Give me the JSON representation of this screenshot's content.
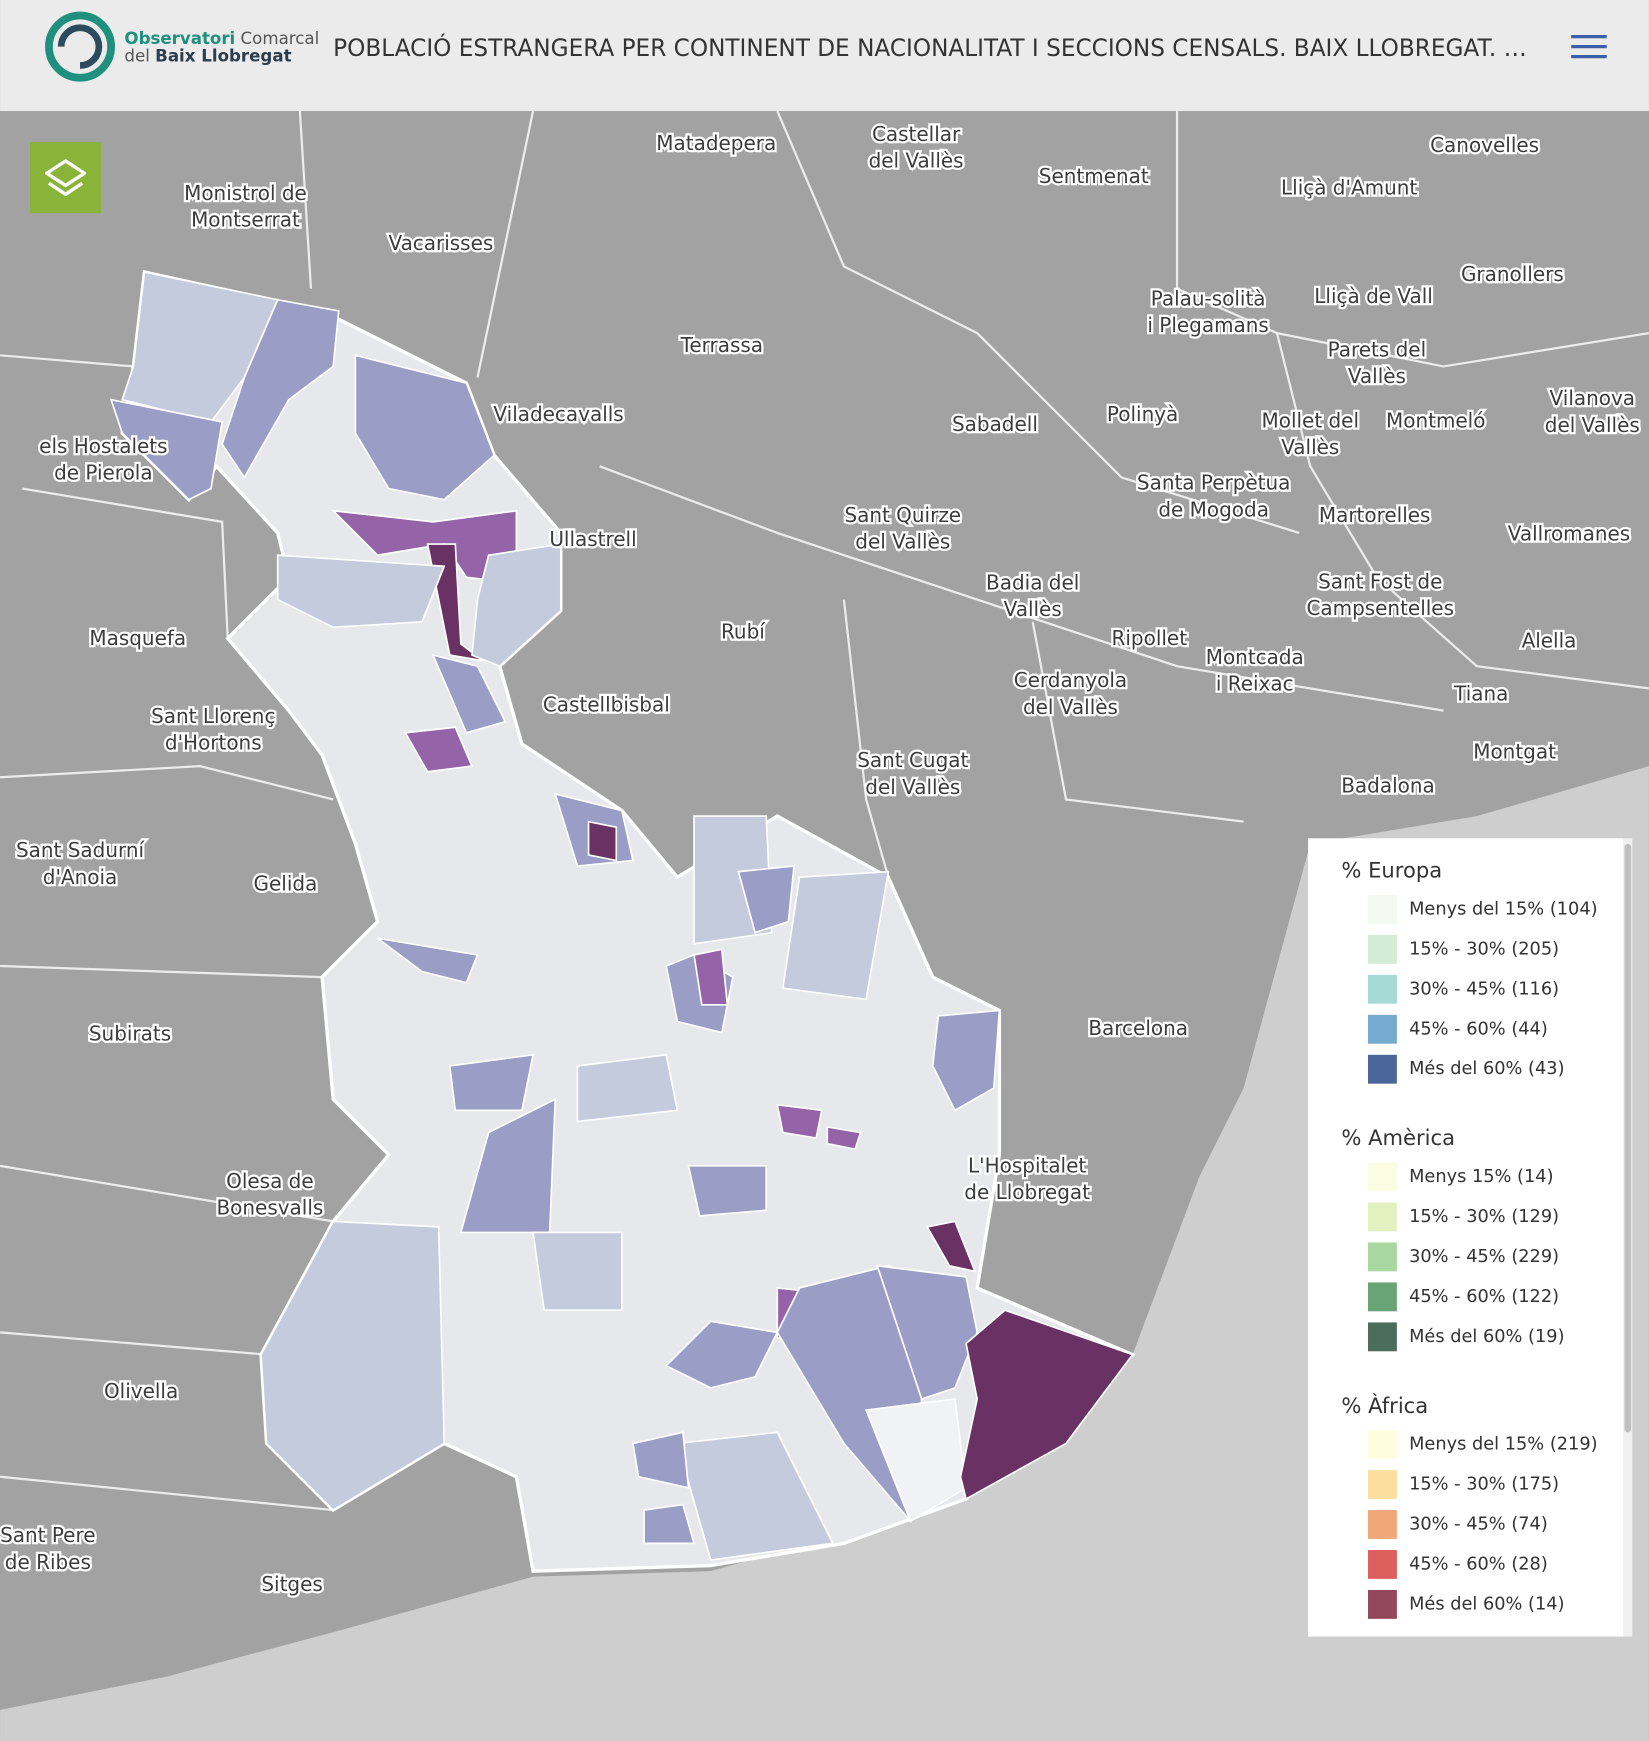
{
  "header": {
    "logo": [
      [
        "Observatori",
        " Comarcal"
      ],
      [
        "del ",
        "Baix Llobregat"
      ]
    ],
    "title": "POBLACIÓ ESTRANGERA PER CONTINENT DE NACIONALITAT I SECCIONS CENSALS. BAIX LLOBREGAT. …"
  },
  "places": [
    [
      "Matadepera"
    ],
    [
      "Castellar",
      "del Vallès"
    ],
    [
      "Sentmenat"
    ],
    [
      "Lliçà d'Amunt"
    ],
    [
      "Canovelles"
    ],
    [
      "Monistrol de",
      "Montserrat"
    ],
    [
      "Vacarisses"
    ],
    [
      "Granollers"
    ],
    [
      "Palau-solità",
      "i Plegamans"
    ],
    [
      "Lliçà de Vall"
    ],
    [
      "Terrassa"
    ],
    [
      "Parets del",
      "Vallès"
    ],
    [
      "Viladecavalls"
    ],
    [
      "Sabadell"
    ],
    [
      "Polinyà"
    ],
    [
      "Mollet del",
      "Vallès"
    ],
    [
      "Montmeló"
    ],
    [
      "Vilanova",
      "del Vallès"
    ],
    [
      "els Hostalets",
      "de Pierola"
    ],
    [
      "Santa Perpètua",
      "de Mogoda"
    ],
    [
      "Sant Quirze",
      "del Vallès"
    ],
    [
      "Martorelles"
    ],
    [
      "Vallromanes"
    ],
    [
      "Ullastrell"
    ],
    [
      "Badia del",
      "Vallès"
    ],
    [
      "Sant Fost de",
      "Campsentelles"
    ],
    [
      "Masquefa"
    ],
    [
      "Rubí"
    ],
    [
      "Ripollet"
    ],
    [
      "Alella"
    ],
    [
      "Montcada",
      "i Reixac"
    ],
    [
      "Cerdanyola",
      "del Vallès"
    ],
    [
      "Castellbisbal"
    ],
    [
      "Tiana"
    ],
    [
      "Sant Llorenç",
      "d'Hortons"
    ],
    [
      "Montgat"
    ],
    [
      "Sant Cugat",
      "del Vallès"
    ],
    [
      "Badalona"
    ],
    [
      "Sant Sadurní",
      "d'Anoia"
    ],
    [
      "Gelida"
    ],
    [
      "Barcelona"
    ],
    [
      "Subirats"
    ],
    [
      "Olesa de",
      "Bonesvalls"
    ],
    [
      "Olivella"
    ],
    [
      "Sant Pere",
      "de Ribes"
    ],
    [
      "Sitges"
    ],
    [
      "L'Hospitalet",
      "de Llobregat"
    ]
  ],
  "legend": [
    {
      "title": "% Europa",
      "items": [
        {
          "label": "Menys del 15% (104)",
          "color": "#f3f9f1"
        },
        {
          "label": "15% - 30% (205)",
          "color": "#d3ecd5"
        },
        {
          "label": "30% - 45% (116)",
          "color": "#a6dad5"
        },
        {
          "label": "45% - 60% (44)",
          "color": "#76abd0"
        },
        {
          "label": "Més del 60% (43)",
          "color": "#4b669a"
        }
      ]
    },
    {
      "title": "% Amèrica",
      "items": [
        {
          "label": "Menys 15% (14)",
          "color": "#fbfde3"
        },
        {
          "label": "15% - 30% (129)",
          "color": "#e3f1c1"
        },
        {
          "label": "30% - 45% (229)",
          "color": "#a8d7a0"
        },
        {
          "label": "45% - 60% (122)",
          "color": "#69a476"
        },
        {
          "label": "Més del 60% (19)",
          "color": "#4c6d5b"
        }
      ]
    },
    {
      "title": "% Àfrica",
      "items": [
        {
          "label": "Menys del 15% (219)",
          "color": "#fefedf"
        },
        {
          "label": "15% - 30% (175)",
          "color": "#fadf9f"
        },
        {
          "label": "30% - 45% (74)",
          "color": "#f1a777"
        },
        {
          "label": "45% - 60% (28)",
          "color": "#df5f5f"
        },
        {
          "label": "Més del 60% (14)",
          "color": "#93475b"
        }
      ]
    }
  ]
}
